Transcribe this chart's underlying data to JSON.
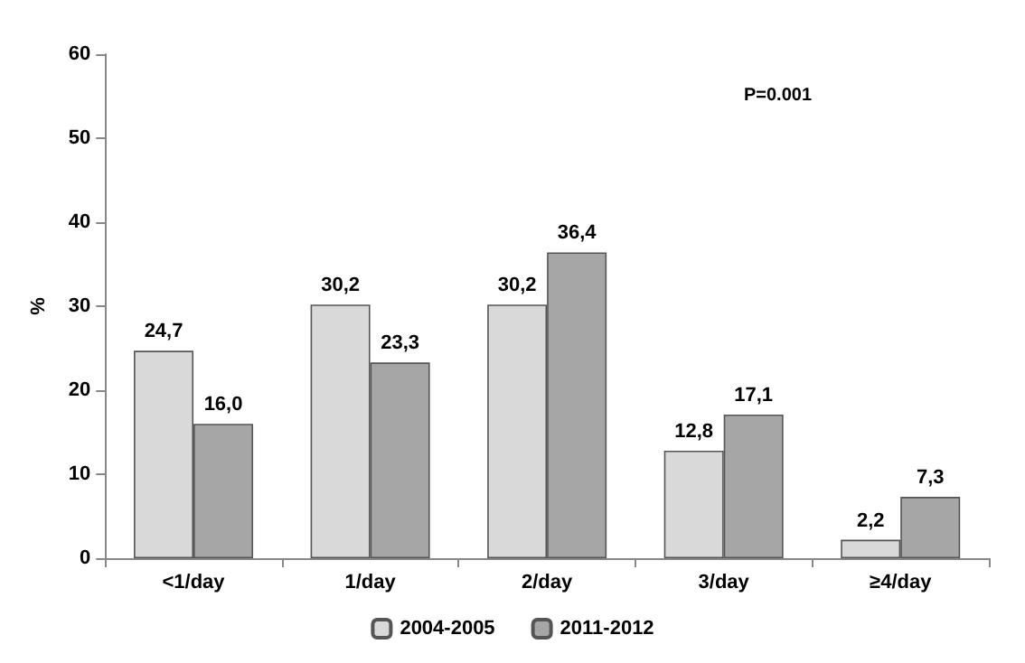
{
  "chart_data": {
    "type": "bar",
    "ylabel": "%",
    "categories": [
      "<1/day",
      "1/day",
      "2/day",
      "3/day",
      "≥4/day"
    ],
    "series": [
      {
        "name": "2004-2005",
        "color": "#d9d9d9",
        "values": [
          24.7,
          30.2,
          30.2,
          12.8,
          2.2
        ],
        "value_labels": [
          "24,7",
          "30,2",
          "30,2",
          "12,8",
          "2,2"
        ]
      },
      {
        "name": "2011-2012",
        "color": "#a6a6a6",
        "values": [
          16.0,
          23.3,
          36.4,
          17.1,
          7.3
        ],
        "value_labels": [
          "16,0",
          "23,3",
          "36,4",
          "17,1",
          "7,3"
        ]
      }
    ],
    "ylim": [
      0,
      60
    ],
    "yticks": [
      0,
      10,
      20,
      30,
      40,
      50,
      60
    ],
    "grid": false,
    "legend": "bottom",
    "annotations": [
      "P=0.001"
    ]
  }
}
